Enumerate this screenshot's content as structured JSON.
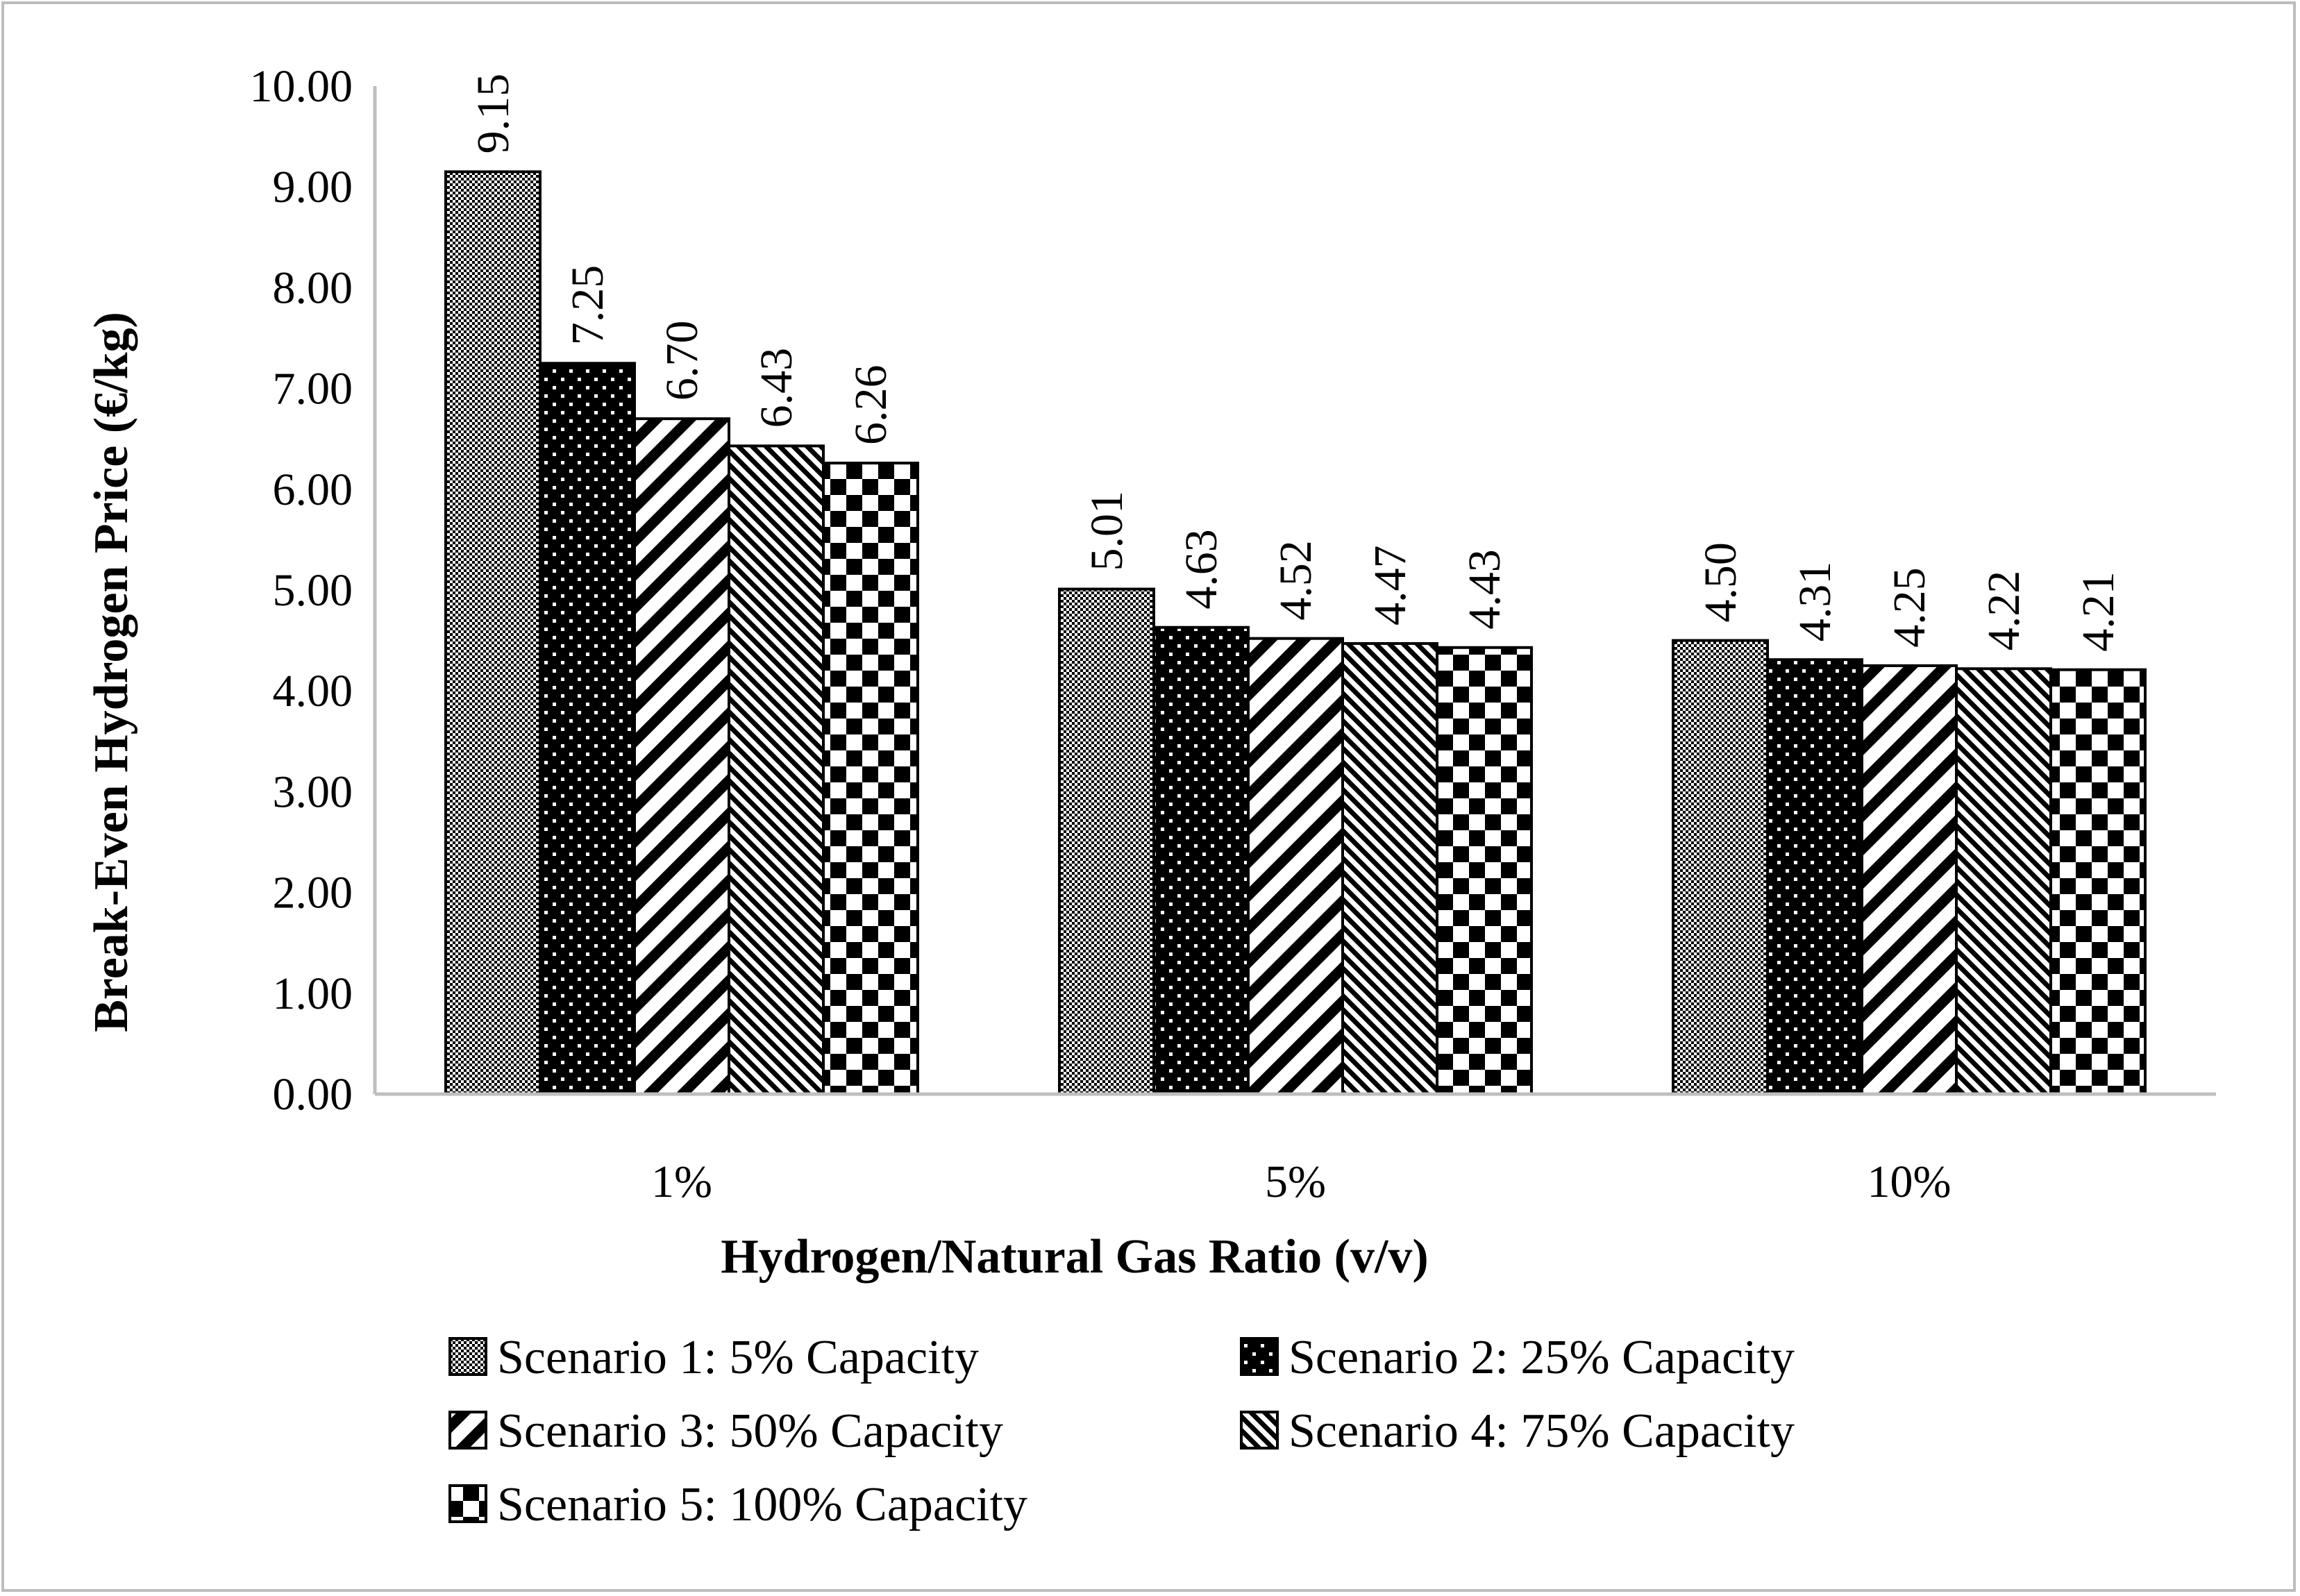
{
  "chart_data": {
    "type": "bar",
    "title": "",
    "xlabel": "Hydrogen/Natural Gas Ratio (v/v)",
    "ylabel": "Break-Even Hydrogen Price (€/kg)",
    "ylim": [
      0,
      10
    ],
    "ytick_step": 1,
    "ytick_labels": [
      "0.00",
      "1.00",
      "2.00",
      "3.00",
      "4.00",
      "5.00",
      "6.00",
      "7.00",
      "8.00",
      "9.00",
      "10.00"
    ],
    "categories": [
      "1%",
      "5%",
      "10%"
    ],
    "series": [
      {
        "name": "Scenario 1: 5% Capacity",
        "pattern": "fine-checker",
        "values": [
          9.15,
          5.01,
          4.5
        ],
        "labels": [
          "9.15",
          "5.01",
          "4.50"
        ]
      },
      {
        "name": "Scenario 2: 25% Capacity",
        "pattern": "dots",
        "values": [
          7.25,
          4.63,
          4.31
        ],
        "labels": [
          "7.25",
          "4.63",
          "4.31"
        ]
      },
      {
        "name": "Scenario 3: 50% Capacity",
        "pattern": "wide-diagonal",
        "values": [
          6.7,
          4.52,
          4.25
        ],
        "labels": [
          "6.70",
          "4.52",
          "4.25"
        ]
      },
      {
        "name": "Scenario 4: 75% Capacity",
        "pattern": "narrow-back-diagonal",
        "values": [
          6.43,
          4.47,
          4.22
        ],
        "labels": [
          "6.43",
          "4.47",
          "4.22"
        ]
      },
      {
        "name": "Scenario 5: 100% Capacity",
        "pattern": "large-checker",
        "values": [
          6.26,
          4.43,
          4.21
        ],
        "labels": [
          "6.26",
          "4.43",
          "4.21"
        ]
      }
    ],
    "grid": false,
    "legend": "bottom",
    "colors": {
      "bar_fill": "#000000",
      "background": "#ffffff",
      "axis": "#bfbfbf",
      "frame": "#bdbdbd"
    }
  }
}
